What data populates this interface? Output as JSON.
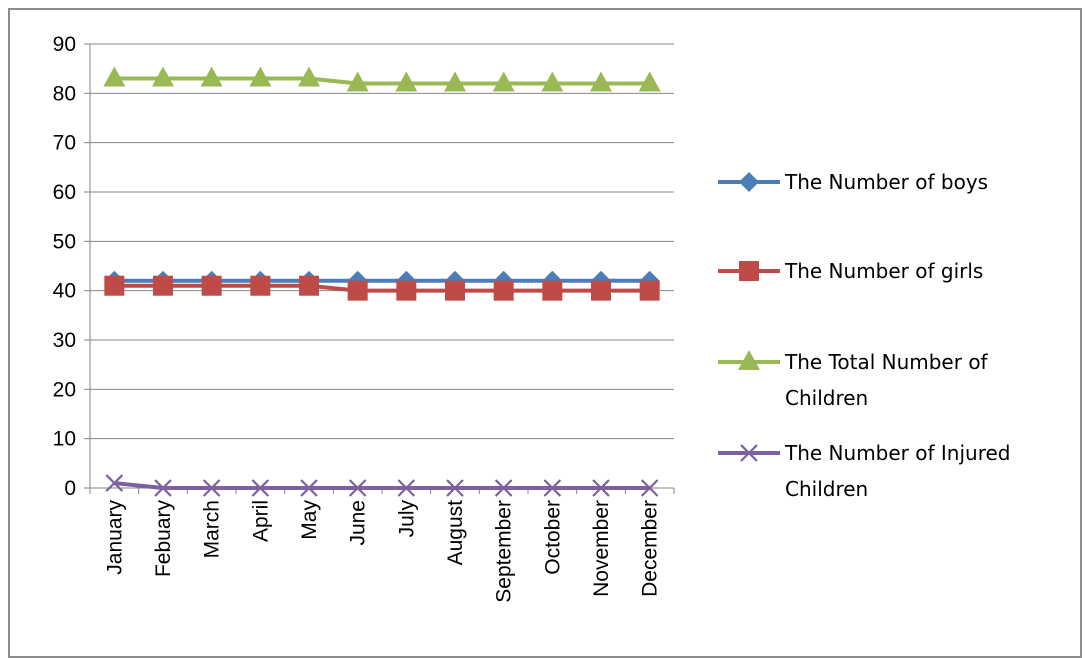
{
  "chart_data": {
    "type": "line",
    "title": "",
    "xlabel": "",
    "ylabel": "",
    "ylim": [
      0,
      90
    ],
    "y_ticks": [
      0,
      10,
      20,
      30,
      40,
      50,
      60,
      70,
      80,
      90
    ],
    "grid": true,
    "legend_position": "right",
    "categories": [
      "January",
      "Febuary",
      "March",
      "April",
      "May",
      "June",
      "July",
      "August",
      "September",
      "October",
      "November",
      "December"
    ],
    "series": [
      {
        "name": "The Number of boys",
        "legend_lines": [
          "The Number of boys"
        ],
        "color": "#4a7ebb",
        "marker": "diamond",
        "values": [
          42,
          42,
          42,
          42,
          42,
          42,
          42,
          42,
          42,
          42,
          42,
          42
        ]
      },
      {
        "name": "The Number of girls",
        "legend_lines": [
          "The Number of girls"
        ],
        "color": "#be4b48",
        "marker": "square",
        "values": [
          41,
          41,
          41,
          41,
          41,
          40,
          40,
          40,
          40,
          40,
          40,
          40
        ]
      },
      {
        "name": "The Total Number of Children",
        "legend_lines": [
          "The Total Number of",
          "Children"
        ],
        "color": "#98b954",
        "marker": "triangle",
        "values": [
          83,
          83,
          83,
          83,
          83,
          82,
          82,
          82,
          82,
          82,
          82,
          82
        ]
      },
      {
        "name": "The Number of Injured Children",
        "legend_lines": [
          "The Number of Injured",
          "Children"
        ],
        "color": "#7d60a0",
        "marker": "x",
        "values": [
          1,
          0,
          0,
          0,
          0,
          0,
          0,
          0,
          0,
          0,
          0,
          0
        ]
      }
    ]
  }
}
